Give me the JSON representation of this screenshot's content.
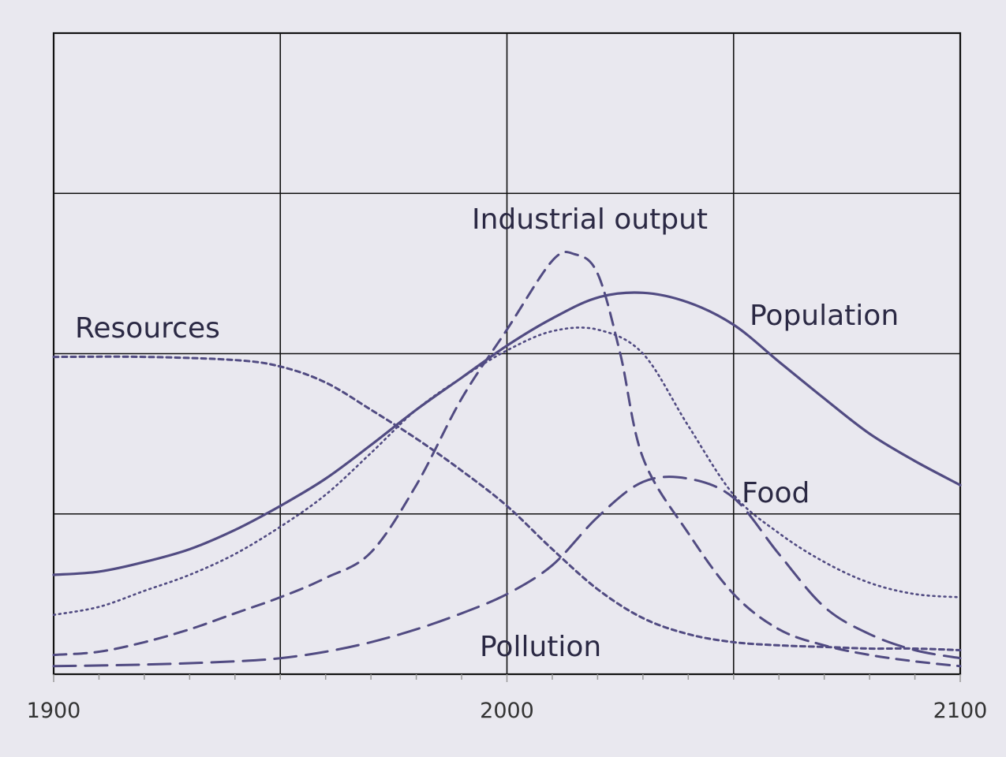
{
  "chart_data": {
    "type": "line",
    "title": "",
    "xlabel": "",
    "ylabel": "",
    "xlim": [
      1900,
      2100
    ],
    "ylim": [
      0,
      4
    ],
    "grid": true,
    "x_tick_labels": [
      "1900",
      "2000",
      "2100"
    ],
    "x_ticks": [
      1900,
      2000,
      2100
    ],
    "series_color": "#514b82",
    "series": [
      {
        "name": "Resources",
        "style": "short-dashed",
        "points": [
          [
            1900,
            1.98
          ],
          [
            1920,
            1.98
          ],
          [
            1940,
            1.96
          ],
          [
            1950,
            1.92
          ],
          [
            1960,
            1.82
          ],
          [
            1970,
            1.65
          ],
          [
            1980,
            1.47
          ],
          [
            1990,
            1.27
          ],
          [
            2000,
            1.05
          ],
          [
            2010,
            0.78
          ],
          [
            2020,
            0.53
          ],
          [
            2030,
            0.35
          ],
          [
            2040,
            0.25
          ],
          [
            2050,
            0.2
          ],
          [
            2060,
            0.18
          ],
          [
            2070,
            0.17
          ],
          [
            2080,
            0.16
          ],
          [
            2090,
            0.16
          ],
          [
            2100,
            0.15
          ]
        ]
      },
      {
        "name": "Population",
        "style": "solid",
        "points": [
          [
            1900,
            0.62
          ],
          [
            1910,
            0.64
          ],
          [
            1920,
            0.7
          ],
          [
            1930,
            0.78
          ],
          [
            1940,
            0.9
          ],
          [
            1950,
            1.05
          ],
          [
            1960,
            1.22
          ],
          [
            1970,
            1.43
          ],
          [
            1980,
            1.65
          ],
          [
            1990,
            1.85
          ],
          [
            2000,
            2.05
          ],
          [
            2010,
            2.22
          ],
          [
            2020,
            2.35
          ],
          [
            2030,
            2.38
          ],
          [
            2040,
            2.32
          ],
          [
            2050,
            2.18
          ],
          [
            2060,
            1.95
          ],
          [
            2070,
            1.72
          ],
          [
            2080,
            1.5
          ],
          [
            2090,
            1.33
          ],
          [
            2100,
            1.18
          ]
        ]
      },
      {
        "name": "Food",
        "style": "dotted",
        "points": [
          [
            1900,
            0.37
          ],
          [
            1910,
            0.42
          ],
          [
            1920,
            0.52
          ],
          [
            1930,
            0.62
          ],
          [
            1940,
            0.75
          ],
          [
            1950,
            0.92
          ],
          [
            1960,
            1.12
          ],
          [
            1970,
            1.38
          ],
          [
            1980,
            1.65
          ],
          [
            1990,
            1.85
          ],
          [
            2000,
            2.02
          ],
          [
            2010,
            2.14
          ],
          [
            2020,
            2.15
          ],
          [
            2030,
            2.0
          ],
          [
            2040,
            1.55
          ],
          [
            2050,
            1.12
          ],
          [
            2060,
            0.88
          ],
          [
            2070,
            0.7
          ],
          [
            2080,
            0.57
          ],
          [
            2090,
            0.5
          ],
          [
            2100,
            0.48
          ]
        ]
      },
      {
        "name": "Industrial output",
        "style": "dashed",
        "points": [
          [
            1900,
            0.12
          ],
          [
            1910,
            0.14
          ],
          [
            1920,
            0.2
          ],
          [
            1930,
            0.28
          ],
          [
            1940,
            0.38
          ],
          [
            1950,
            0.48
          ],
          [
            1960,
            0.6
          ],
          [
            1970,
            0.76
          ],
          [
            1980,
            1.18
          ],
          [
            1990,
            1.72
          ],
          [
            2000,
            2.15
          ],
          [
            2010,
            2.58
          ],
          [
            2015,
            2.62
          ],
          [
            2020,
            2.5
          ],
          [
            2025,
            2.0
          ],
          [
            2030,
            1.35
          ],
          [
            2040,
            0.88
          ],
          [
            2050,
            0.5
          ],
          [
            2060,
            0.28
          ],
          [
            2070,
            0.18
          ],
          [
            2080,
            0.12
          ],
          [
            2090,
            0.08
          ],
          [
            2100,
            0.05
          ]
        ]
      },
      {
        "name": "Pollution",
        "style": "long-dashed",
        "points": [
          [
            1900,
            0.05
          ],
          [
            1920,
            0.06
          ],
          [
            1940,
            0.08
          ],
          [
            1950,
            0.1
          ],
          [
            1960,
            0.14
          ],
          [
            1970,
            0.2
          ],
          [
            1980,
            0.28
          ],
          [
            1990,
            0.38
          ],
          [
            2000,
            0.5
          ],
          [
            2010,
            0.68
          ],
          [
            2020,
            0.98
          ],
          [
            2030,
            1.2
          ],
          [
            2040,
            1.22
          ],
          [
            2050,
            1.1
          ],
          [
            2060,
            0.75
          ],
          [
            2070,
            0.42
          ],
          [
            2080,
            0.25
          ],
          [
            2090,
            0.15
          ],
          [
            2100,
            0.1
          ]
        ]
      }
    ],
    "labels": [
      {
        "series": "Resources",
        "text": "Resources"
      },
      {
        "series": "Industrial output",
        "text": "Industrial output"
      },
      {
        "series": "Population",
        "text": "Population"
      },
      {
        "series": "Food",
        "text": "Food"
      },
      {
        "series": "Pollution",
        "text": "Pollution"
      }
    ]
  }
}
